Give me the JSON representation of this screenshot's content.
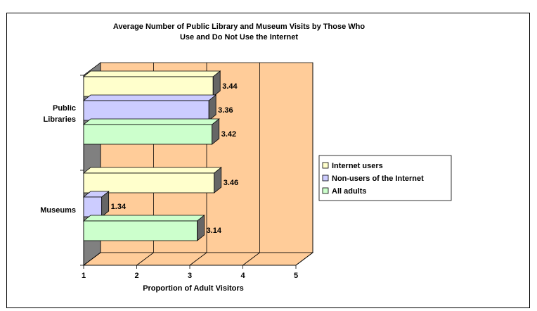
{
  "chart_data": {
    "type": "bar",
    "orientation": "horizontal",
    "three_d": true,
    "title": "Average Number of Public Library and Museum Visits by Those Who Use and Do Not Use the Internet",
    "title_lines": [
      "Average Number of Public Library and Museum Visits by Those Who",
      "Use and Do Not Use the Internet"
    ],
    "xlabel": "Proportion of Adult Visitors",
    "ylabel": "",
    "xlim": [
      1,
      5
    ],
    "x_ticks": [
      "1",
      "2",
      "3",
      "4",
      "5"
    ],
    "grid": true,
    "legend_position": "right",
    "plot_background": "#FFCC99",
    "categories": [
      {
        "label_lines": [
          "Public",
          "Libraries"
        ]
      },
      {
        "label_lines": [
          "Museums"
        ]
      }
    ],
    "series": [
      {
        "name": "Internet users",
        "color": "#FFFFCC",
        "values": [
          3.44,
          3.46
        ],
        "labels": [
          "3.44",
          "3.46"
        ]
      },
      {
        "name": "Non-users of the Internet",
        "color": "#CCCCFF",
        "values": [
          3.36,
          1.34
        ],
        "labels": [
          "3.36",
          "1.34"
        ]
      },
      {
        "name": "All adults",
        "color": "#CCFFCC",
        "values": [
          3.42,
          3.14
        ],
        "labels": [
          "3.42",
          "3.14"
        ]
      }
    ]
  }
}
